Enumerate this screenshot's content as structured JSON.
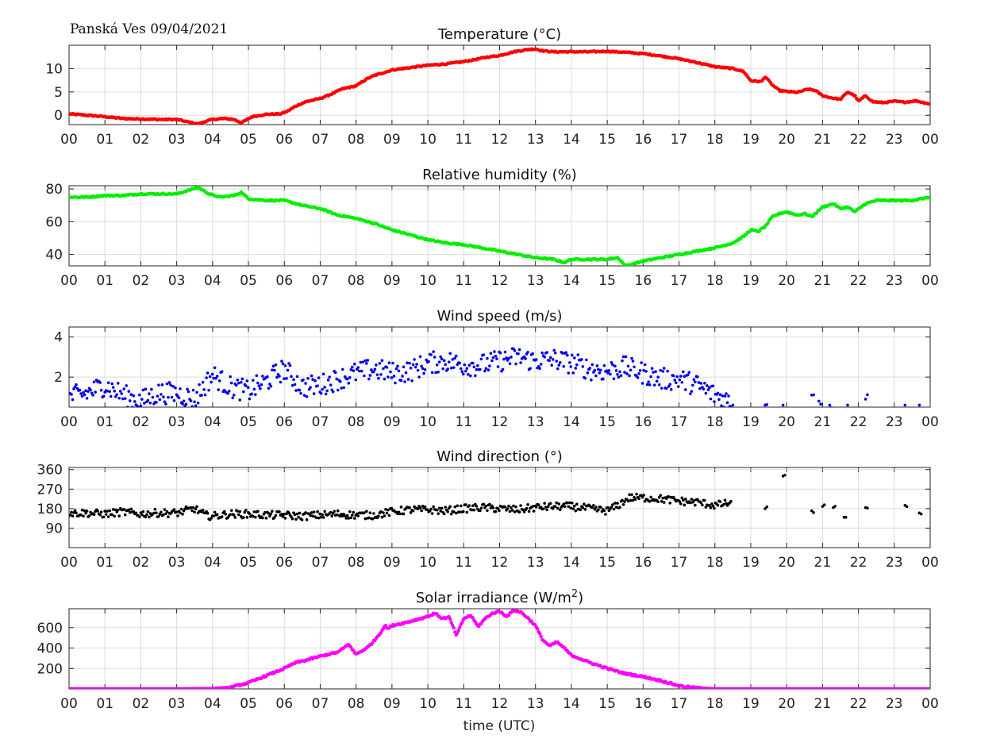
{
  "station_label": "Panská Ves 09/04/2021",
  "x_axis_label": "time (UTC)",
  "hour_labels": [
    "00",
    "01",
    "02",
    "03",
    "04",
    "05",
    "06",
    "07",
    "08",
    "09",
    "10",
    "11",
    "12",
    "13",
    "14",
    "15",
    "16",
    "17",
    "18",
    "19",
    "20",
    "21",
    "22",
    "23",
    "00"
  ],
  "chart_data": [
    {
      "id": "temperature",
      "type": "scatter",
      "title": "Temperature (°C)",
      "xlabel": "",
      "ylabel": "",
      "color": "#ff0000",
      "xlim": [
        0,
        24
      ],
      "ylim": [
        -2,
        15
      ],
      "yticks": [
        0,
        5,
        10
      ],
      "grid": true,
      "resolution_hours": 0.0333,
      "x": [
        0,
        0.5,
        1,
        1.5,
        2,
        2.5,
        3,
        3.3,
        3.6,
        3.8,
        4,
        4.3,
        4.6,
        4.8,
        4.9,
        5.1,
        5.5,
        5.9,
        6.1,
        6.3,
        6.6,
        7,
        7.3,
        7.6,
        8,
        8.3,
        8.5,
        8.8,
        9,
        9.5,
        10,
        10.5,
        11,
        11.3,
        11.6,
        12,
        12.4,
        12.8,
        13,
        13.2,
        13.5,
        14,
        14.5,
        15,
        15.5,
        16,
        16.5,
        17,
        17.5,
        18,
        18.5,
        18.8,
        19,
        19.3,
        19.4,
        19.6,
        19.8,
        20,
        20.3,
        20.6,
        20.8,
        21,
        21.2,
        21.5,
        21.7,
        21.9,
        22,
        22.2,
        22.4,
        22.7,
        23,
        23.3,
        23.6,
        24
      ],
      "y": [
        0.3,
        0,
        -0.3,
        -0.7,
        -0.8,
        -0.9,
        -0.9,
        -1.4,
        -1.9,
        -1.3,
        -0.9,
        -0.7,
        -0.9,
        -1.6,
        -1.2,
        -0.3,
        0.2,
        0.3,
        0.9,
        1.9,
        2.9,
        3.6,
        4.5,
        5.6,
        6.3,
        7.8,
        8.5,
        9.2,
        9.7,
        10.2,
        10.7,
        11,
        11.5,
        11.9,
        12.4,
        12.8,
        13.6,
        14.1,
        14.2,
        13.8,
        13.6,
        13.6,
        13.6,
        13.7,
        13.5,
        13.2,
        12.7,
        12.1,
        11.3,
        10.4,
        10,
        9.4,
        7.4,
        7.2,
        8.3,
        6.5,
        5.3,
        5.1,
        4.9,
        5.6,
        5.3,
        4.2,
        3.8,
        3.4,
        5,
        4.2,
        3,
        4.2,
        2.9,
        2.7,
        3,
        2.8,
        3.1,
        2.4
      ]
    },
    {
      "id": "humidity",
      "type": "scatter",
      "title": "Relative humidity (%)",
      "xlabel": "",
      "ylabel": "",
      "color": "#00ee00",
      "xlim": [
        0,
        24
      ],
      "ylim": [
        33,
        82
      ],
      "yticks": [
        40,
        60,
        80
      ],
      "grid": true,
      "resolution_hours": 0.0333,
      "x": [
        0,
        0.5,
        1,
        1.5,
        2,
        2.5,
        3,
        3.3,
        3.6,
        3.9,
        4.2,
        4.6,
        4.8,
        5,
        5.5,
        6,
        6.5,
        7,
        7.5,
        8,
        8.5,
        9,
        9.5,
        10,
        10.5,
        11,
        11.5,
        12,
        12.5,
        13,
        13.5,
        13.8,
        14,
        14.5,
        15,
        15.3,
        15.5,
        15.7,
        16,
        16.5,
        17,
        17.5,
        18,
        18.5,
        18.8,
        19,
        19.2,
        19.4,
        19.6,
        19.8,
        20,
        20.3,
        20.5,
        20.7,
        21,
        21.3,
        21.5,
        21.7,
        21.9,
        22.2,
        22.5,
        23,
        23.5,
        24
      ],
      "y": [
        75,
        75,
        76,
        76,
        77,
        77,
        77,
        79,
        81,
        77,
        75,
        76,
        78,
        74,
        73,
        73,
        70,
        68,
        64,
        62,
        59,
        55,
        52,
        49,
        47,
        46,
        44,
        42,
        40,
        38,
        37,
        35,
        37,
        37,
        37,
        38,
        33,
        34,
        36,
        38,
        40,
        42,
        44,
        47,
        51,
        55,
        54,
        57,
        63,
        65,
        66,
        64,
        65,
        63,
        69,
        71,
        68,
        69,
        66,
        71,
        73,
        73,
        73,
        75
      ]
    },
    {
      "id": "wind_speed",
      "type": "scatter",
      "title": "Wind speed (m/s)",
      "xlabel": "",
      "ylabel": "",
      "color": "#0000ee",
      "xlim": [
        0,
        24
      ],
      "ylim": [
        0.5,
        4.5
      ],
      "yticks": [
        2,
        4
      ],
      "grid": true,
      "resolution_hours": 0.0333,
      "x": [
        0,
        0.5,
        1,
        1.5,
        2,
        2.5,
        3,
        3.5,
        4,
        4.5,
        5,
        5.5,
        6,
        6.5,
        7,
        7.5,
        8,
        8.5,
        9,
        9.5,
        10,
        10.5,
        11,
        11.5,
        12,
        12.5,
        13,
        13.5,
        14,
        14.5,
        15,
        15.5,
        16,
        16.5,
        17,
        17.5,
        18,
        18.3,
        18.5,
        19.4,
        19.9,
        20.7,
        20.9,
        21.2,
        21.7,
        22.2,
        23.3,
        23.7
      ],
      "y": [
        1,
        1.2,
        1.6,
        1.1,
        0.8,
        1.2,
        1.2,
        0.9,
        2.1,
        1.5,
        1.3,
        1.8,
        2.4,
        1.5,
        1.6,
        1.9,
        2.2,
        2.4,
        2.2,
        2.3,
        2.7,
        2.8,
        2.6,
        2.6,
        2.8,
        3,
        2.8,
        2.9,
        2.7,
        2.4,
        2.3,
        2.5,
        2.2,
        1.9,
        1.9,
        1.6,
        1.1,
        0.9,
        0.6,
        0.6,
        0.6,
        1.1,
        0.8,
        0.6,
        0.6,
        0.9,
        0.6,
        0.6
      ]
    },
    {
      "id": "wind_direction",
      "type": "scatter",
      "title": "Wind direction (°)",
      "xlabel": "",
      "ylabel": "",
      "color": "#000000",
      "xlim": [
        0,
        24
      ],
      "ylim": [
        0,
        370
      ],
      "yticks": [
        90,
        180,
        270,
        360
      ],
      "grid": true,
      "resolution_hours": 0.0333,
      "x": [
        0,
        0.5,
        1,
        1.5,
        2,
        2.5,
        3,
        3.5,
        3.8,
        4,
        4.5,
        5,
        5.5,
        6,
        6.5,
        7,
        7.5,
        8,
        8.5,
        9,
        9.5,
        10,
        10.5,
        11,
        11.5,
        12,
        12.5,
        13,
        13.5,
        14,
        14.5,
        15,
        15.3,
        15.6,
        16,
        16.5,
        17,
        17.5,
        18,
        18.4,
        19.4,
        19.9,
        20.7,
        21,
        21.3,
        21.6,
        22.2,
        23.3,
        23.7
      ],
      "y": [
        160,
        160,
        155,
        165,
        155,
        160,
        160,
        180,
        150,
        145,
        155,
        155,
        150,
        150,
        145,
        150,
        155,
        150,
        150,
        165,
        175,
        175,
        170,
        180,
        185,
        180,
        175,
        185,
        190,
        190,
        180,
        170,
        195,
        230,
        230,
        225,
        215,
        210,
        195,
        205,
        180,
        330,
        170,
        190,
        185,
        140,
        185,
        195,
        160
      ]
    },
    {
      "id": "solar",
      "type": "scatter",
      "title": "Solar irradiance (W/m²)",
      "xlabel": "time (UTC)",
      "ylabel": "",
      "color": "#ff00ff",
      "xlim": [
        0,
        24
      ],
      "ylim": [
        0,
        785
      ],
      "yticks": [
        200,
        400,
        600
      ],
      "grid": true,
      "resolution_hours": 0.0333,
      "x": [
        0,
        3,
        4,
        4.5,
        5,
        5.5,
        6,
        6.3,
        6.6,
        7,
        7.5,
        7.8,
        7.9,
        8,
        8.3,
        8.5,
        8.7,
        8.8,
        8.9,
        9,
        9.5,
        10,
        10.2,
        10.4,
        10.6,
        10.8,
        11,
        11.2,
        11.4,
        11.6,
        11.8,
        12,
        12.2,
        12.4,
        12.6,
        12.8,
        13,
        13.2,
        13.4,
        13.6,
        13.8,
        14,
        14.5,
        15,
        15.5,
        16,
        16.5,
        17,
        17.5,
        18,
        24
      ],
      "y": [
        0,
        0,
        3,
        15,
        60,
        130,
        200,
        255,
        280,
        320,
        360,
        440,
        380,
        340,
        400,
        470,
        560,
        620,
        590,
        620,
        660,
        710,
        740,
        690,
        700,
        520,
        690,
        720,
        610,
        690,
        740,
        760,
        710,
        770,
        750,
        690,
        620,
        480,
        420,
        460,
        400,
        330,
        260,
        200,
        150,
        120,
        80,
        30,
        10,
        0,
        0
      ]
    }
  ]
}
